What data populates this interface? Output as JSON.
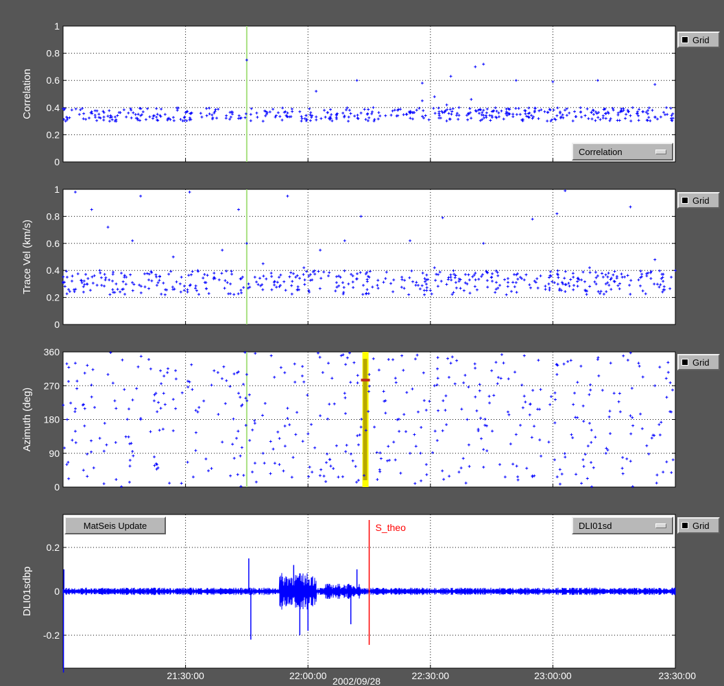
{
  "buttons": {
    "grid_label": "Grid",
    "correlation_select": "Correlation",
    "update": "MatSeis Update",
    "channel_select": "DLI01sd"
  },
  "colors": {
    "background": "#565656",
    "plot_bg": "#ffffff",
    "points": "#0000ff",
    "green_marker": "#a8e080",
    "yellow_marker": "#ffff00",
    "yellow_inner": "#b8a800",
    "theo_line": "#ff0000"
  },
  "chart_data": [
    {
      "type": "scatter",
      "ylabel": "Correlation",
      "ylim": [
        0,
        1
      ],
      "yticks": [
        0,
        0.2,
        0.4,
        0.6,
        0.8,
        1
      ],
      "ytick_labels": [
        "0",
        "0.2",
        "0.4",
        "0.6",
        "0.8",
        "1"
      ],
      "xlim_min": [
        0,
        150
      ],
      "grid": true,
      "marker_min": 45,
      "series": [
        {
          "x": [
            45,
            62,
            72,
            88,
            95,
            101,
            103,
            111,
            120,
            131,
            145,
            1,
            4,
            7,
            10,
            13,
            16,
            19,
            22,
            25,
            28,
            31,
            34,
            37,
            40,
            43,
            46,
            49,
            52,
            55,
            58,
            61,
            64,
            67,
            70,
            73,
            76,
            79,
            82,
            85,
            88,
            91,
            94,
            97,
            100,
            103,
            106,
            109,
            112,
            115,
            118,
            121,
            124,
            127,
            130,
            133,
            136,
            139,
            142,
            145,
            148
          ],
          "y": [
            0.75,
            0.52,
            0.6,
            0.58,
            0.63,
            0.7,
            0.72,
            0.6,
            0.59,
            0.6,
            0.57,
            0.31,
            0.35,
            0.37,
            0.33,
            0.3,
            0.36,
            0.34,
            0.32,
            0.35,
            0.38,
            0.31,
            0.33,
            0.36,
            0.34,
            0.32,
            0.35,
            0.3,
            0.33,
            0.36,
            0.37,
            0.34,
            0.38,
            0.35,
            0.33,
            0.36,
            0.4,
            0.34,
            0.38,
            0.36,
            0.45,
            0.48,
            0.42,
            0.4,
            0.46,
            0.38,
            0.33,
            0.36,
            0.35,
            0.32,
            0.37,
            0.34,
            0.36,
            0.33,
            0.35,
            0.32,
            0.36,
            0.34,
            0.37,
            0.33,
            0.35
          ]
        }
      ]
    },
    {
      "type": "scatter",
      "ylabel": "Trace Vel (km/s)",
      "ylim": [
        0,
        1
      ],
      "yticks": [
        0,
        0.2,
        0.4,
        0.6,
        0.8,
        1
      ],
      "ytick_labels": [
        "0",
        "0.2",
        "0.4",
        "0.6",
        "0.8",
        "1"
      ],
      "grid": true,
      "series": [
        {
          "x": [
            1,
            3,
            5,
            7,
            9,
            11,
            13,
            15,
            17,
            19,
            21,
            23,
            25,
            27,
            29,
            31,
            33,
            35,
            37,
            39,
            41,
            43,
            45,
            47,
            49,
            51,
            53,
            55,
            57,
            59,
            61,
            63,
            65,
            67,
            69,
            71,
            73,
            75,
            77,
            79,
            81,
            83,
            85,
            87,
            89,
            91,
            93,
            95,
            97,
            99,
            101,
            103,
            105,
            107,
            109,
            111,
            113,
            115,
            117,
            119,
            121,
            123,
            125,
            127,
            129,
            131,
            133,
            135,
            137,
            139,
            141,
            143,
            145,
            147,
            149
          ],
          "y": [
            0.35,
            0.98,
            0.28,
            0.85,
            0.4,
            0.72,
            0.3,
            0.35,
            0.62,
            0.95,
            0.33,
            0.29,
            0.22,
            0.5,
            0.35,
            0.98,
            0.4,
            0.31,
            0.38,
            0.55,
            0.3,
            0.85,
            0.6,
            0.35,
            0.45,
            0.38,
            0.28,
            0.95,
            0.35,
            0.42,
            0.33,
            0.55,
            0.36,
            0.31,
            0.62,
            0.36,
            0.8,
            0.35,
            0.29,
            0.34,
            0.33,
            0.35,
            0.62,
            0.29,
            0.33,
            0.42,
            0.79,
            0.35,
            0.32,
            0.3,
            0.38,
            0.6,
            0.35,
            0.29,
            0.34,
            0.31,
            0.33,
            0.78,
            0.36,
            0.3,
            0.82,
            0.99,
            0.35,
            0.33,
            0.42,
            0.36,
            0.3,
            0.32,
            0.35,
            0.87,
            0.33,
            0.36,
            0.48,
            0.32,
            0.35
          ]
        }
      ]
    },
    {
      "type": "scatter",
      "ylabel": "Azimuth (deg)",
      "ylim": [
        0,
        360
      ],
      "yticks": [
        0,
        90,
        180,
        270,
        360
      ],
      "ytick_labels": [
        "0",
        "90",
        "180",
        "270",
        "360"
      ],
      "grid": true,
      "series": [
        {
          "x": [
            1,
            3,
            5,
            7,
            9,
            11,
            13,
            15,
            17,
            19,
            21,
            23,
            25,
            27,
            29,
            31,
            33,
            35,
            37,
            39,
            41,
            43,
            45,
            47,
            49,
            51,
            53,
            55,
            57,
            59,
            61,
            63,
            65,
            67,
            69,
            71,
            73,
            75,
            77,
            79,
            81,
            83,
            85,
            87,
            89,
            91,
            93,
            95,
            97,
            99,
            101,
            103,
            105,
            107,
            109,
            111,
            113,
            115,
            117,
            119,
            121,
            123,
            125,
            127,
            129,
            131,
            133,
            135,
            137,
            139,
            141,
            143,
            145,
            147,
            149
          ],
          "y": [
            180,
            330,
            45,
            240,
            130,
            300,
            20,
            260,
            95,
            180,
            340,
            60,
            220,
            150,
            10,
            280,
            200,
            75,
            310,
            120,
            30,
            250,
            300,
            170,
            90,
            350,
            60,
            210,
            140,
            280,
            40,
            190,
            330,
            110,
            250,
            70,
            160,
            300,
            20,
            230,
            120,
            350,
            90,
            200,
            60,
            270,
            150,
            330,
            40,
            180,
            240,
            100,
            310,
            60,
            200,
            140,
            350,
            30,
            260,
            120,
            300,
            80,
            220,
            10,
            170,
            340,
            90,
            250,
            50,
            190,
            330,
            110,
            270,
            40,
            200
          ]
        }
      ]
    },
    {
      "type": "line",
      "ylabel": "DLI01sdbp",
      "xlabel": "2002/09/28",
      "ylim": [
        -0.35,
        0.35
      ],
      "yticks": [
        -0.2,
        0,
        0.2
      ],
      "ytick_labels": [
        "-0.2",
        "0",
        "0.2"
      ],
      "xticks_min": [
        30,
        60,
        90,
        120,
        150
      ],
      "xtick_labels": [
        "21:30:00",
        "22:00:00",
        "22:30:00",
        "23:00:00",
        "23:30:00"
      ],
      "grid": true,
      "annotation": "S_theo",
      "annotation_min": 75,
      "spikes": [
        {
          "x": 0.1,
          "y": -0.37
        },
        {
          "x": 0.2,
          "y": 0.1
        },
        {
          "x": 45.5,
          "y": 0.15
        },
        {
          "x": 46,
          "y": -0.22
        },
        {
          "x": 56.5,
          "y": 0.12
        },
        {
          "x": 58,
          "y": -0.2
        },
        {
          "x": 60,
          "y": -0.18
        },
        {
          "x": 70.5,
          "y": -0.15
        },
        {
          "x": 72,
          "y": 0.1
        }
      ]
    }
  ]
}
